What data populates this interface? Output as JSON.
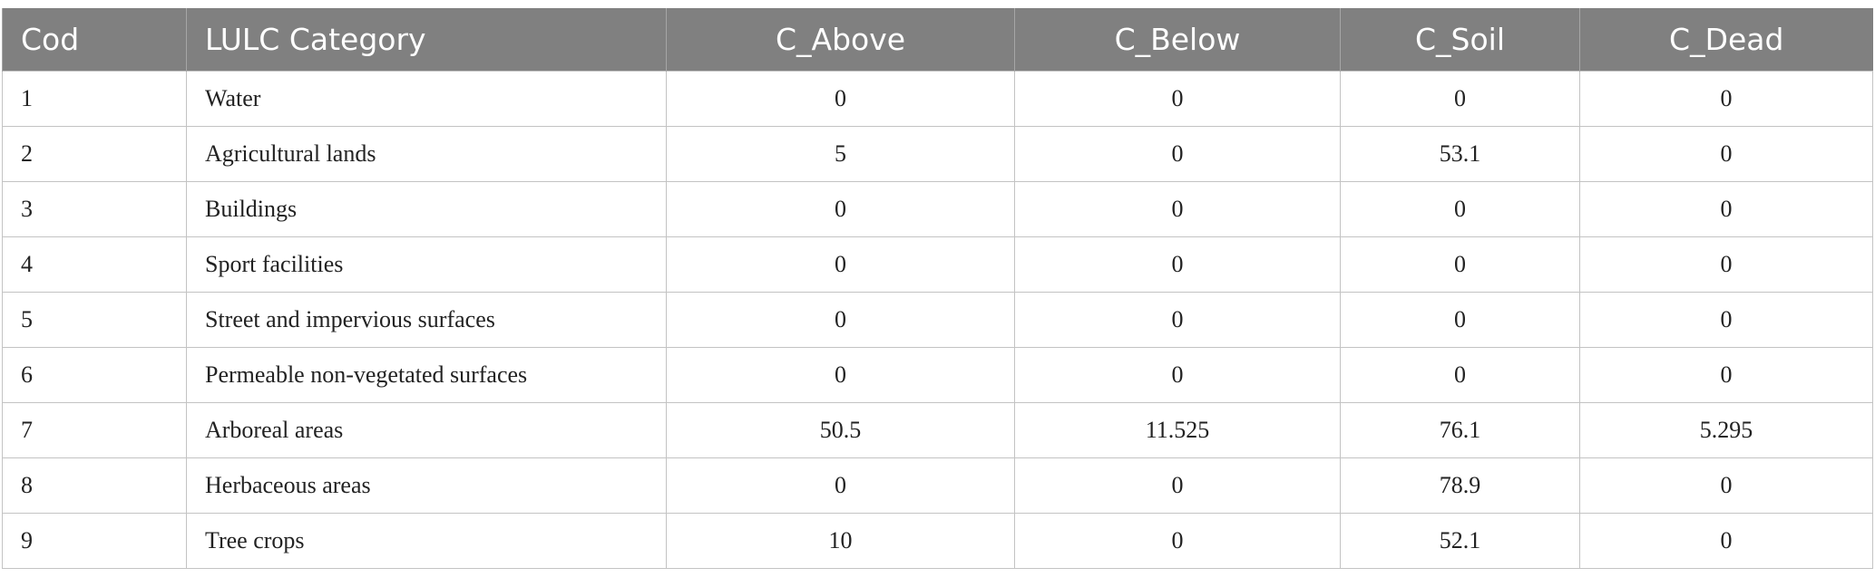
{
  "table": {
    "columns": [
      "Cod",
      "LULC Category",
      "C_Above",
      "C_Below",
      "C_Soil",
      "C_Dead"
    ],
    "rows": [
      [
        1,
        "Water",
        0,
        0,
        0,
        0
      ],
      [
        2,
        "Agricultural lands",
        5,
        0,
        53.1,
        0
      ],
      [
        3,
        "Buildings",
        0,
        0,
        0,
        0
      ],
      [
        4,
        "Sport facilities",
        0,
        0,
        0,
        0
      ],
      [
        5,
        "Street and impervious surfaces",
        0,
        0,
        0,
        0
      ],
      [
        6,
        "Permeable non-vegetated surfaces",
        0,
        0,
        0,
        0
      ],
      [
        7,
        "Arboreal areas",
        50.5,
        11.525,
        76.1,
        5.295
      ],
      [
        8,
        "Herbaceous areas",
        0,
        0,
        78.9,
        0
      ],
      [
        9,
        "Tree crops",
        10,
        0,
        52.1,
        0
      ]
    ]
  }
}
